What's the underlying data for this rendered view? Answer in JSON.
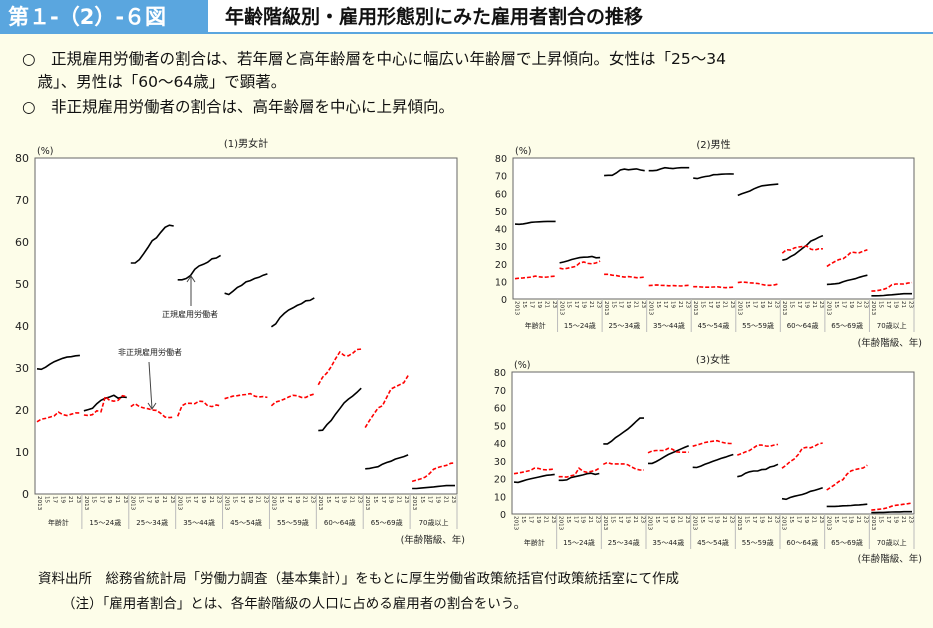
{
  "header": {
    "figure_no": "第１-（2）-６図",
    "title": "年齢階級別・雇用形態別にみた雇用者割合の推移"
  },
  "summary": [
    "○　正規雇用労働者の割合は、若年層と高年齢層を中心に幅広い年齢層で上昇傾向。女性は「25～34",
    "　歳」、男性は「60～64歳」で顕著。",
    "○　非正規雇用労働者の割合は、高年齢層を中心に上昇傾向。"
  ],
  "footer": {
    "source": "資料出所　総務省統計局「労働力調査（基本集計）」をもとに厚生労働省政策統括官付政策統括室にて作成",
    "note": "（注）「雇用者割合」とは、各年齢階級の人口に占める雇用者の割合をいう。"
  },
  "colors": {
    "regular": "#000000",
    "non_regular": "#ff0000",
    "header_blue": "#5aa6df"
  },
  "chart_data": [
    {
      "type": "line",
      "title": "(1)男女計",
      "ylabel": "(%)",
      "xlabel": "(年齢階級、年)",
      "ylim": [
        0,
        80
      ],
      "yticks": [
        0,
        10,
        20,
        30,
        40,
        50,
        60,
        70,
        80
      ],
      "groups": [
        "年齢計",
        "15～24歳",
        "25～34歳",
        "35～44歳",
        "45～54歳",
        "55～59歳",
        "60～64歳",
        "65～69歳",
        "70歳以上"
      ],
      "years": [
        2013,
        2014,
        2015,
        2016,
        2017,
        2018,
        2019,
        2020,
        2021,
        2022,
        2023
      ],
      "year_tick_labels": [
        "2013",
        "15",
        "17",
        "19",
        "21",
        "23"
      ],
      "annotations": [
        "正規雇用労働者",
        "非正規雇用労働者"
      ],
      "series": [
        {
          "name": "正規雇用労働者",
          "style": "solid",
          "values": [
            [
              29.8,
              29.7,
              30.2,
              30.9,
              31.5,
              31.9,
              32.3,
              32.6,
              32.7,
              32.9,
              33.0
            ],
            [
              19.8,
              20.1,
              20.4,
              21.5,
              22.3,
              22.8,
              23.1,
              23.5,
              22.8,
              23.1,
              23.0
            ],
            [
              55,
              55,
              55.8,
              57.2,
              58.7,
              60.3,
              61,
              62.3,
              63.5,
              64,
              63.8
            ],
            [
              51,
              51,
              51.3,
              52,
              53.5,
              54.3,
              54.7,
              55.2,
              56,
              56.2,
              56.8
            ],
            [
              47.8,
              47.5,
              48.3,
              49.2,
              49.7,
              50.5,
              50.8,
              51.3,
              51.6,
              52.1,
              52.4
            ],
            [
              39.8,
              40.5,
              42,
              43,
              43.8,
              44.3,
              44.9,
              45.3,
              46,
              46.1,
              46.7
            ],
            [
              15.1,
              15.2,
              16.5,
              17.5,
              19,
              20.3,
              21.7,
              22.6,
              23.3,
              24.2,
              25.2
            ],
            [
              6,
              6.1,
              6.3,
              6.5,
              7.1,
              7.5,
              7.8,
              8.3,
              8.6,
              8.9,
              9.3
            ],
            [
              1.3,
              1.3,
              1.4,
              1.5,
              1.6,
              1.7,
              1.8,
              1.9,
              2,
              2,
              2
            ]
          ]
        },
        {
          "name": "非正規雇用労働者",
          "style": "dashed",
          "values": [
            [
              17.2,
              17.8,
              18,
              18.3,
              18.6,
              19.5,
              18.9,
              18.7,
              19,
              19.3,
              19.3
            ],
            [
              18.8,
              18.7,
              18.9,
              19.8,
              19.6,
              23.2,
              22.3,
              22.1,
              22.3,
              23.4,
              23.2
            ],
            [
              20.8,
              21.5,
              20.8,
              20.5,
              20.3,
              20,
              19.9,
              19.2,
              18.3,
              18.2,
              18.3
            ],
            [
              18.5,
              21,
              21.6,
              21.6,
              21.5,
              22.1,
              22,
              21,
              20.8,
              21.2,
              21
            ],
            [
              22.7,
              23,
              23.3,
              23.4,
              23.6,
              23.7,
              23.9,
              23.3,
              23.1,
              23.2,
              23
            ],
            [
              21,
              21.9,
              22.2,
              22.6,
              23.1,
              23.5,
              23.4,
              23,
              23,
              23.5,
              23.8
            ],
            [
              26,
              27.8,
              28.8,
              30.3,
              32.2,
              33.8,
              33,
              32.9,
              33.5,
              34.4,
              34.5
            ],
            [
              15.8,
              17.5,
              19,
              20.5,
              21,
              23,
              25,
              25.5,
              26,
              26.5,
              28.2
            ],
            [
              3,
              3.3,
              3.6,
              4,
              4.8,
              5.9,
              6.3,
              6.6,
              6.8,
              7.3,
              7.4
            ]
          ]
        }
      ]
    },
    {
      "type": "line",
      "title": "(2)男性",
      "ylabel": "(%)",
      "xlabel": "(年齢階級、年)",
      "ylim": [
        0,
        80
      ],
      "yticks": [
        0,
        10,
        20,
        30,
        40,
        50,
        60,
        70,
        80
      ],
      "groups": [
        "年齢計",
        "15～24歳",
        "25～34歳",
        "35～44歳",
        "45～54歳",
        "55～59歳",
        "60～64歳",
        "65～69歳",
        "70歳以上"
      ],
      "years": [
        2013,
        2014,
        2015,
        2016,
        2017,
        2018,
        2019,
        2020,
        2021,
        2022,
        2023
      ],
      "year_tick_labels": [
        "2013",
        "15",
        "17",
        "19",
        "21",
        "23"
      ],
      "series": [
        {
          "name": "正規雇用労働者",
          "style": "solid",
          "values": [
            [
              42.5,
              42.4,
              42.6,
              43,
              43.5,
              43.7,
              43.8,
              43.9,
              44,
              44,
              44
            ],
            [
              20.5,
              21,
              21.6,
              22.4,
              23,
              23.5,
              23.7,
              23.8,
              24.1,
              23.4,
              23.5
            ],
            [
              70,
              70.2,
              70.2,
              71.5,
              73.2,
              73.7,
              73.3,
              73.6,
              73.8,
              73.2,
              72.8
            ],
            [
              72.8,
              72.8,
              73,
              73.8,
              74.5,
              74.2,
              74,
              74.3,
              74.5,
              74.5,
              74.5
            ],
            [
              68.6,
              68.3,
              69,
              69.5,
              69.8,
              70.5,
              70.6,
              70.8,
              70.9,
              71,
              70.9
            ],
            [
              58.8,
              59.7,
              60.5,
              61.3,
              62.5,
              63.5,
              64.2,
              64.5,
              64.8,
              65,
              65.2
            ],
            [
              22,
              22.5,
              24,
              25.2,
              27,
              28.8,
              30.5,
              32.8,
              33.8,
              35,
              36
            ],
            [
              8.3,
              8.4,
              8.6,
              8.9,
              9.8,
              10.5,
              11,
              11.5,
              12.3,
              13,
              13.5
            ],
            [
              1.8,
              1.8,
              1.9,
              2,
              2.2,
              2.4,
              2.6,
              2.8,
              3,
              3,
              3
            ]
          ]
        },
        {
          "name": "非正規雇用労働者",
          "style": "dashed",
          "values": [
            [
              11.5,
              11.8,
              12,
              12.2,
              12.4,
              13,
              12.6,
              12.3,
              12.5,
              12.8,
              13
            ],
            [
              17.5,
              17,
              17.5,
              18,
              18.5,
              20.5,
              21,
              20.2,
              20,
              20.5,
              21.5
            ],
            [
              14,
              14,
              13.5,
              13.3,
              12.8,
              12.4,
              12.7,
              12.4,
              12.1,
              12.2,
              12.4
            ],
            [
              7.6,
              7.8,
              8,
              7.8,
              7.7,
              7.5,
              7.6,
              7.5,
              7.4,
              7.6,
              7.8
            ],
            [
              7,
              7,
              6.8,
              6.7,
              6.7,
              6.8,
              6.9,
              6.6,
              6.4,
              6.6,
              6.7
            ],
            [
              9.3,
              9.6,
              9.5,
              9.2,
              9,
              8.8,
              8.2,
              7.8,
              7.8,
              8,
              8.5
            ],
            [
              26,
              28,
              27.8,
              29,
              29.5,
              29.8,
              30,
              28.3,
              27.8,
              28.5,
              28.5
            ],
            [
              18.5,
              20,
              21.3,
              22.4,
              22.8,
              24.5,
              26.6,
              26.3,
              26.2,
              27.2,
              28
            ],
            [
              4.5,
              4.6,
              5,
              5.5,
              6.3,
              8,
              8.5,
              8.5,
              8.5,
              9,
              9.3
            ]
          ]
        }
      ]
    },
    {
      "type": "line",
      "title": "(3)女性",
      "ylabel": "(%)",
      "xlabel": "(年齢階級、年)",
      "ylim": [
        0,
        80
      ],
      "yticks": [
        0,
        10,
        20,
        30,
        40,
        50,
        60,
        70,
        80
      ],
      "groups": [
        "年齢計",
        "15～24歳",
        "25～34歳",
        "35～44歳",
        "45～54歳",
        "55～59歳",
        "60～64歳",
        "65～69歳",
        "70歳以上"
      ],
      "years": [
        2013,
        2014,
        2015,
        2016,
        2017,
        2018,
        2019,
        2020,
        2021,
        2022,
        2023
      ],
      "year_tick_labels": [
        "2013",
        "15",
        "17",
        "19",
        "21",
        "23"
      ],
      "series": [
        {
          "name": "正規雇用労働者",
          "style": "solid",
          "values": [
            [
              18,
              17.8,
              18.5,
              19.2,
              19.8,
              20.3,
              20.8,
              21.3,
              21.8,
              22,
              22.3
            ],
            [
              19,
              19,
              19.2,
              20.5,
              21,
              21.5,
              22,
              22.7,
              23,
              22.3,
              22.8
            ],
            [
              39.5,
              39.5,
              41,
              43,
              44.5,
              46.2,
              47.8,
              49.8,
              52,
              54,
              54
            ],
            [
              28.5,
              28.5,
              29.5,
              30.8,
              32.2,
              33.5,
              34.5,
              35.5,
              36.5,
              37.5,
              38.5
            ],
            [
              26.3,
              26.2,
              27,
              28,
              28.8,
              29.7,
              30.5,
              31.3,
              32,
              32.8,
              33.5
            ],
            [
              21,
              21.5,
              23,
              23.8,
              24.2,
              24.2,
              25,
              25.2,
              26.5,
              27,
              28
            ],
            [
              8.6,
              8.3,
              9.3,
              10,
              10.5,
              11,
              11.8,
              12.8,
              13.3,
              14,
              14.8
            ],
            [
              4.3,
              4.3,
              4.3,
              4.4,
              4.6,
              4.7,
              4.8,
              5,
              5.1,
              5.3,
              5.5
            ],
            [
              0.8,
              0.8,
              0.9,
              0.9,
              1,
              1.1,
              1.2,
              1.2,
              1.3,
              1.3,
              1.3
            ]
          ]
        },
        {
          "name": "非正規雇用労働者",
          "style": "dashed",
          "values": [
            [
              22.7,
              23.1,
              23.5,
              24,
              24.5,
              25.8,
              25.7,
              25,
              24.9,
              25.1,
              25.3
            ],
            [
              21,
              21,
              20.8,
              21.5,
              22,
              25.8,
              24,
              23.5,
              24,
              24.5,
              25.8
            ],
            [
              28,
              29,
              28.3,
              28.2,
              28.2,
              28.2,
              27.8,
              26.5,
              25.3,
              24.8,
              24.8
            ],
            [
              34.5,
              35.5,
              35.8,
              35.8,
              35.8,
              37,
              36.5,
              35,
              34.8,
              34.8,
              34.8
            ],
            [
              38.2,
              38.8,
              39.5,
              40.3,
              40.7,
              41,
              41.3,
              40.5,
              40,
              39.7,
              39.7
            ],
            [
              33.2,
              34,
              35,
              35.8,
              37.3,
              38.8,
              38.8,
              38.3,
              38.2,
              38.8,
              39.2
            ],
            [
              25.8,
              27.5,
              29.5,
              31,
              33.5,
              37,
              37.6,
              37.3,
              38.2,
              39.5,
              40
            ],
            [
              13.5,
              15,
              16.5,
              18.3,
              19.3,
              22.5,
              24.3,
              25,
              25.5,
              26,
              27.5
            ],
            [
              2.2,
              2.4,
              2.7,
              3,
              3.5,
              4.4,
              4.9,
              5.2,
              5.5,
              5.8,
              6.2
            ]
          ]
        }
      ]
    }
  ]
}
